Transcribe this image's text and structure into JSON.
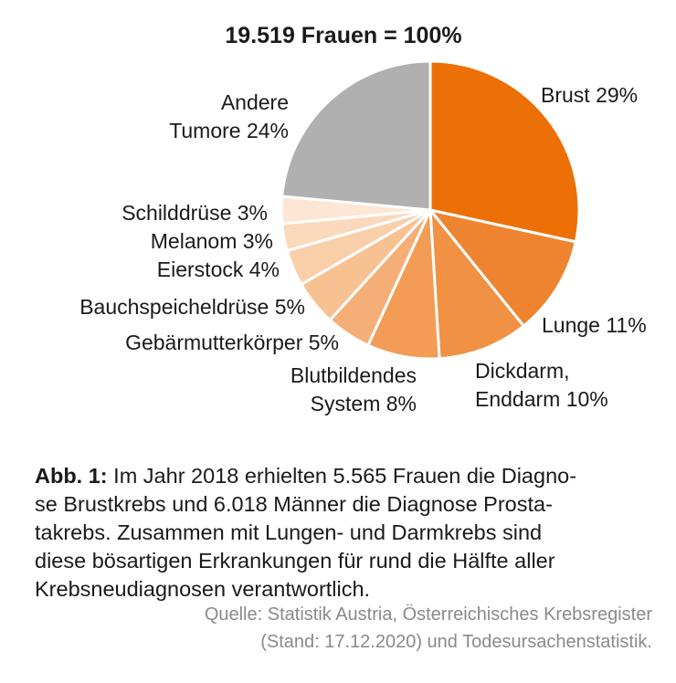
{
  "chart_data": {
    "type": "pie",
    "title": "19.519 Frauen = 100%",
    "slices": [
      {
        "label_lines": [
          "Brust 29%"
        ],
        "value": 29,
        "color": "#ec7006"
      },
      {
        "label_lines": [
          "Lunge 11%"
        ],
        "value": 11,
        "color": "#ef8430"
      },
      {
        "label_lines": [
          "Dickdarm,",
          "Enddarm 10%"
        ],
        "value": 10,
        "color": "#f19143"
      },
      {
        "label_lines": [
          "Blutbildendes",
          "System 8%"
        ],
        "value": 8,
        "color": "#f29c55"
      },
      {
        "label_lines": [
          "Gebärmutterkörper 5%"
        ],
        "value": 5,
        "color": "#f5ae76"
      },
      {
        "label_lines": [
          "Bauchspeicheldrüse 5%"
        ],
        "value": 5,
        "color": "#f7c192"
      },
      {
        "label_lines": [
          "Eierstock 4%"
        ],
        "value": 4,
        "color": "#f9cfaa"
      },
      {
        "label_lines": [
          "Melanom 3%"
        ],
        "value": 3,
        "color": "#fbd9bd"
      },
      {
        "label_lines": [
          "Schilddrüse 3%"
        ],
        "value": 3,
        "color": "#fde6d4"
      },
      {
        "label_lines": [
          "Andere",
          "Tumore 24%"
        ],
        "value": 24,
        "color": "#b1b0b0"
      }
    ]
  },
  "caption": {
    "label": "Abb. 1:",
    "lines": [
      "Im Jahr 2018 erhielten 5.565 Frauen die Diagno-",
      "se Brustkrebs und 6.018 Männer die Diagnose Prosta-",
      "takrebs. Zusammen mit Lungen- und Darmkrebs sind",
      "diese bösartigen Erkrankungen für rund die Hälfte aller",
      "Krebsneudiagnosen verantwortlich."
    ]
  },
  "source": {
    "lines": [
      "Quelle: Statistik Austria, Österreichisches Krebsregister",
      "(Stand: 17.12.2020) und Todesursachenstatistik."
    ]
  }
}
